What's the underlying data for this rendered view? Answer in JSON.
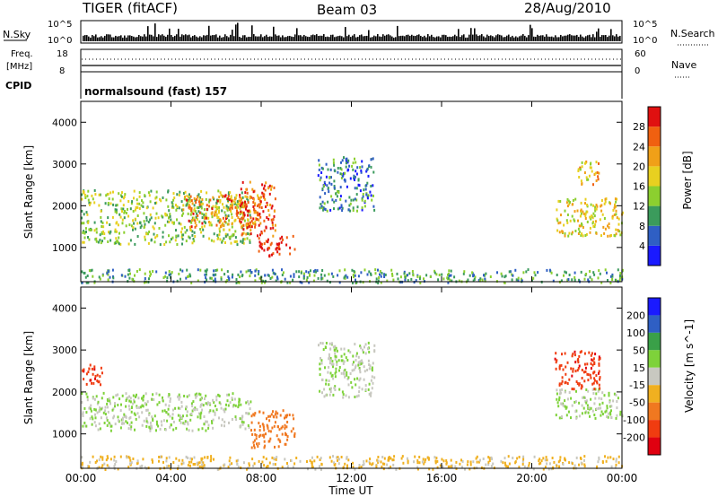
{
  "header": {
    "radar": "TIGER (fitACF)",
    "beam": "Beam 03",
    "date": "28/Aug/2010"
  },
  "top_panels": {
    "nsky_label": "N.Sky",
    "nsky_ticks": [
      "10^5",
      "10^0"
    ],
    "nsearch_label": "N.Search",
    "nsearch_ticks": [
      "10^5",
      "10^0"
    ],
    "freq_label_1": "Freq.",
    "freq_label_2": "[MHz]",
    "freq_ticks": [
      "18",
      "8"
    ],
    "nave_label": "Nave",
    "nave_ticks": [
      "60",
      "0"
    ],
    "cpid_label": "CPID",
    "cpid_value": "normalsound (fast) 157"
  },
  "chart_data": [
    {
      "type": "heatmap",
      "panel": "power",
      "xlabel": "",
      "ylabel": "Slant Range [km]",
      "x_ticks": [
        "00:00",
        "04:00",
        "08:00",
        "12:00",
        "16:00",
        "20:00",
        "00:00"
      ],
      "xlim": [
        0,
        24
      ],
      "y_ticks": [
        1000,
        2000,
        3000,
        4000
      ],
      "ylim": [
        180,
        4500
      ],
      "colorbar": {
        "label": "Power [dB]",
        "ticks": [
          4,
          8,
          12,
          16,
          20,
          24,
          28
        ],
        "range": [
          0,
          32
        ]
      },
      "features": [
        {
          "t": [
            0.0,
            7.5
          ],
          "r": [
            1100,
            2400
          ],
          "value": 14
        },
        {
          "t": [
            4.5,
            8.0
          ],
          "r": [
            1500,
            2300
          ],
          "value": 24
        },
        {
          "t": [
            7.0,
            8.6
          ],
          "r": [
            1300,
            2600
          ],
          "value": 26
        },
        {
          "t": [
            7.8,
            9.5
          ],
          "r": [
            800,
            1300
          ],
          "value": 30
        },
        {
          "t": [
            10.5,
            13.0
          ],
          "r": [
            1900,
            3200
          ],
          "value": 8
        },
        {
          "t": [
            21.0,
            24.0
          ],
          "r": [
            1300,
            2200
          ],
          "value": 18
        },
        {
          "t": [
            22.0,
            23.0
          ],
          "r": [
            2500,
            3100
          ],
          "value": 20
        },
        {
          "t": [
            0.0,
            24.0
          ],
          "r": [
            180,
            500
          ],
          "value": 10
        }
      ]
    },
    {
      "type": "heatmap",
      "panel": "velocity",
      "xlabel": "Time UT",
      "ylabel": "Slant Range [km]",
      "x_ticks": [
        "00:00",
        "04:00",
        "08:00",
        "12:00",
        "16:00",
        "20:00",
        "00:00"
      ],
      "xlim": [
        0,
        24
      ],
      "y_ticks": [
        1000,
        2000,
        3000,
        4000
      ],
      "ylim": [
        180,
        4500
      ],
      "colorbar": {
        "label": "Velocity [m s^-1]",
        "ticks": [
          200,
          100,
          50,
          15,
          -15,
          -50,
          -100,
          -200
        ],
        "range": [
          -250,
          250
        ]
      },
      "features": [
        {
          "t": [
            0.0,
            7.5
          ],
          "r": [
            1100,
            2000
          ],
          "value": 0
        },
        {
          "t": [
            0.0,
            1.0
          ],
          "r": [
            2200,
            2700
          ],
          "value": -200
        },
        {
          "t": [
            7.5,
            9.5
          ],
          "r": [
            700,
            1600
          ],
          "value": -120
        },
        {
          "t": [
            10.5,
            13.0
          ],
          "r": [
            1900,
            3200
          ],
          "value": 0
        },
        {
          "t": [
            21.0,
            24.0
          ],
          "r": [
            1400,
            2100
          ],
          "value": 0
        },
        {
          "t": [
            21.0,
            23.0
          ],
          "r": [
            2100,
            3000
          ],
          "value": -200
        },
        {
          "t": [
            0.0,
            24.0
          ],
          "r": [
            180,
            500
          ],
          "value": -40
        }
      ]
    }
  ]
}
